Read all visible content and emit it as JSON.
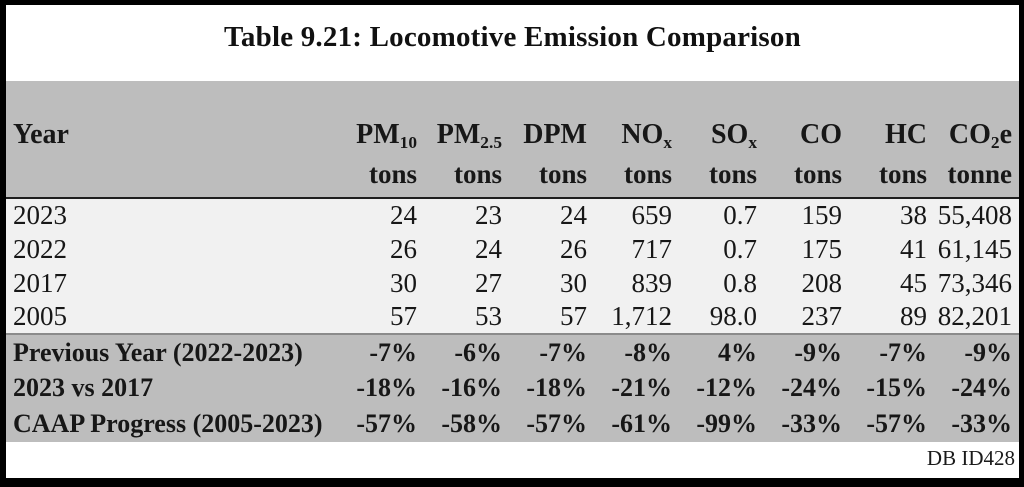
{
  "title": "Table 9.21:  Locomotive Emission Comparison",
  "footer_note": "DB ID428",
  "colors": {
    "band_gray": "#bdbdbd",
    "row_light": "#f1f1f1",
    "frame_black": "#000000",
    "text": "#171717"
  },
  "table": {
    "year_header": "Year",
    "columns": [
      {
        "id": "pm10",
        "name": "PM",
        "sub": "10",
        "suffix": "",
        "unit": "tons"
      },
      {
        "id": "pm25",
        "name": "PM",
        "sub": "2.5",
        "suffix": "",
        "unit": "tons"
      },
      {
        "id": "dpm",
        "name": "DPM",
        "sub": "",
        "suffix": "",
        "unit": "tons"
      },
      {
        "id": "nox",
        "name": "NO",
        "sub": "x",
        "suffix": "",
        "unit": "tons"
      },
      {
        "id": "sox",
        "name": "SO",
        "sub": "x",
        "suffix": "",
        "unit": "tons"
      },
      {
        "id": "co",
        "name": "CO",
        "sub": "",
        "suffix": "",
        "unit": "tons"
      },
      {
        "id": "hc",
        "name": "HC",
        "sub": "",
        "suffix": "",
        "unit": "tons"
      },
      {
        "id": "co2e",
        "name": "CO",
        "sub": "2",
        "suffix": "e",
        "unit": "tonne"
      }
    ],
    "year_rows": [
      {
        "label": "2023",
        "values": [
          "24",
          "23",
          "24",
          "659",
          "0.7",
          "159",
          "38",
          "55,408"
        ]
      },
      {
        "label": "2022",
        "values": [
          "26",
          "24",
          "26",
          "717",
          "0.7",
          "175",
          "41",
          "61,145"
        ]
      },
      {
        "label": "2017",
        "values": [
          "30",
          "27",
          "30",
          "839",
          "0.8",
          "208",
          "45",
          "73,346"
        ]
      },
      {
        "label": "2005",
        "values": [
          "57",
          "53",
          "57",
          "1,712",
          "98.0",
          "237",
          "89",
          "82,201"
        ]
      }
    ],
    "summary_rows": [
      {
        "label": "Previous Year (2022-2023)",
        "values": [
          "-7%",
          "-6%",
          "-7%",
          "-8%",
          "4%",
          "-9%",
          "-7%",
          "-9%"
        ]
      },
      {
        "label": "2023 vs 2017",
        "values": [
          "-18%",
          "-16%",
          "-18%",
          "-21%",
          "-12%",
          "-24%",
          "-15%",
          "-24%"
        ]
      },
      {
        "label": "CAAP Progress (2005-2023)",
        "values": [
          "-57%",
          "-58%",
          "-57%",
          "-61%",
          "-99%",
          "-33%",
          "-57%",
          "-33%"
        ]
      }
    ]
  }
}
